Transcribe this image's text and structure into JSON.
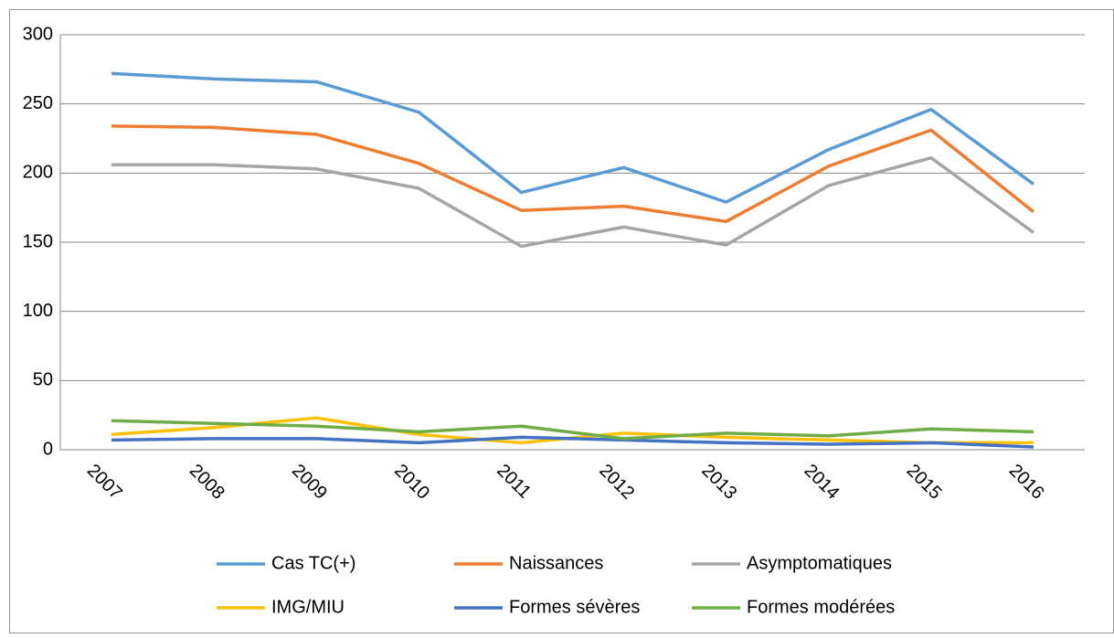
{
  "chart_data": {
    "type": "line",
    "categories": [
      "2007",
      "2008",
      "2009",
      "2010",
      "2011",
      "2012",
      "2013",
      "2014",
      "2015",
      "2016"
    ],
    "series": [
      {
        "name": "Cas TC(+)",
        "color": "#5b9bd5",
        "values": [
          272,
          268,
          266,
          244,
          186,
          204,
          179,
          217,
          246,
          192
        ]
      },
      {
        "name": "Naissances",
        "color": "#ed7d31",
        "values": [
          234,
          233,
          228,
          207,
          173,
          176,
          165,
          205,
          231,
          172
        ]
      },
      {
        "name": "Asymptomatiques",
        "color": "#a5a5a5",
        "values": [
          206,
          206,
          203,
          189,
          147,
          161,
          148,
          191,
          211,
          157
        ]
      },
      {
        "name": "IMG/MIU",
        "color": "#ffc000",
        "values": [
          11,
          16,
          23,
          11,
          5,
          12,
          9,
          7,
          5,
          5
        ]
      },
      {
        "name": "Formes sévères",
        "color": "#4472c4",
        "values": [
          7,
          8,
          8,
          5,
          9,
          7,
          5,
          4,
          5,
          2
        ]
      },
      {
        "name": "Formes modérées",
        "color": "#70ad47",
        "values": [
          21,
          19,
          17,
          13,
          17,
          8,
          12,
          10,
          15,
          13
        ]
      }
    ],
    "ylim": [
      0,
      300
    ],
    "yticks": [
      0,
      50,
      100,
      150,
      200,
      250,
      300
    ],
    "grid": true,
    "legend": "bottom"
  }
}
